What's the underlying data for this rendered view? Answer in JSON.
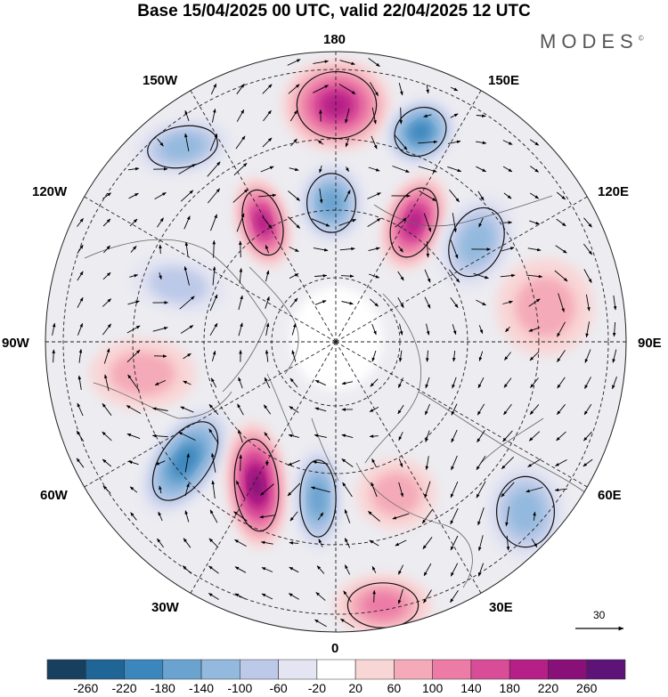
{
  "header": {
    "title": "Base 15/04/2025 00 UTC, valid 22/04/2025 12 UTC",
    "brand": "MODES",
    "brand_mark": "©"
  },
  "map": {
    "projection": "north-polar-stereographic",
    "meridian_labels": {
      "top": "180",
      "top_right": "150E",
      "right_upper": "120E",
      "right": "90E",
      "right_lower": "60E",
      "bottom_right": "30E",
      "bottom": "0",
      "bottom_left": "30W",
      "left_lower": "60W",
      "left": "90W",
      "left_upper": "120W",
      "top_left": "150W"
    },
    "wind_reference": {
      "value": "30"
    },
    "anomaly_centers": [
      {
        "name": "high-aleutian",
        "sign": "positive",
        "level": 180
      },
      {
        "name": "low-kamchatka",
        "sign": "negative",
        "level": -180
      },
      {
        "name": "low-alaska-south",
        "sign": "negative",
        "level": -120
      },
      {
        "name": "high-alaska",
        "sign": "positive",
        "level": 180
      },
      {
        "name": "low-beaufort",
        "sign": "negative",
        "level": -140
      },
      {
        "name": "high-siberia-east",
        "sign": "positive",
        "level": 200
      },
      {
        "name": "low-siberia",
        "sign": "negative",
        "level": -120
      },
      {
        "name": "high-central-asia",
        "sign": "positive",
        "level": 80
      },
      {
        "name": "low-hudson",
        "sign": "negative",
        "level": -80
      },
      {
        "name": "high-north-america",
        "sign": "positive",
        "level": 60
      },
      {
        "name": "low-west-atlantic",
        "sign": "negative",
        "level": -200
      },
      {
        "name": "high-mid-atlantic",
        "sign": "positive",
        "level": 220
      },
      {
        "name": "low-east-atlantic",
        "sign": "negative",
        "level": -140
      },
      {
        "name": "high-europe",
        "sign": "positive",
        "level": 80
      },
      {
        "name": "low-west-asia",
        "sign": "negative",
        "level": -100
      },
      {
        "name": "high-north-africa",
        "sign": "positive",
        "level": 100
      }
    ]
  },
  "colorbar": {
    "levels": [
      "-260",
      "-220",
      "-180",
      "-140",
      "-100",
      "-60",
      "-20",
      "20",
      "60",
      "100",
      "140",
      "180",
      "220",
      "260"
    ],
    "colors": [
      "#173f5f",
      "#1f6595",
      "#3b86bd",
      "#6aa3cf",
      "#93b9de",
      "#bcc9e8",
      "#e4e4f2",
      "#ffffff",
      "#f9d6d6",
      "#f4aab8",
      "#ec7ba6",
      "#d94c97",
      "#b61f87",
      "#881078",
      "#5e1378"
    ]
  }
}
